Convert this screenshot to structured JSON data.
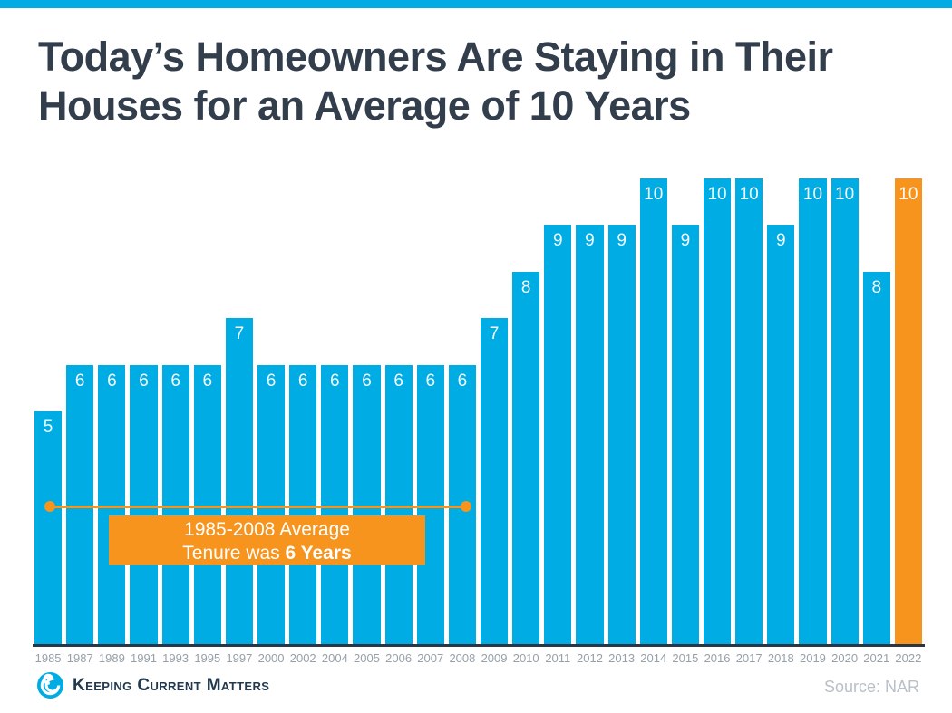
{
  "colors": {
    "cyan": "#00ACE4",
    "orange": "#F7941E",
    "dark": "#333E4C",
    "axis": "#2A3644",
    "xlabel_gray": "#97A0A9",
    "source_gray": "#B9C0C8"
  },
  "title": {
    "line1": "Today’s Homeowners Are Staying in Their",
    "line2": "Houses for an Average of 10 Years"
  },
  "chart_data": {
    "type": "bar",
    "title": "Today’s Homeowners Are Staying in Their Houses for an Average of 10 Years",
    "categories": [
      "1985",
      "1987",
      "1989",
      "1991",
      "1993",
      "1995",
      "1997",
      "2000",
      "2002",
      "2004",
      "2005",
      "2006",
      "2007",
      "2008",
      "2009",
      "2010",
      "2011",
      "2012",
      "2013",
      "2014",
      "2015",
      "2016",
      "2017",
      "2018",
      "2019",
      "2020",
      "2021",
      "2022"
    ],
    "values": [
      5,
      6,
      6,
      6,
      6,
      6,
      7,
      6,
      6,
      6,
      6,
      6,
      6,
      6,
      7,
      8,
      9,
      9,
      9,
      10,
      9,
      10,
      10,
      9,
      10,
      10,
      8,
      10
    ],
    "value_labels_shown": true,
    "bar_color": "#00ACE4",
    "highlight_index": 27,
    "highlight_color": "#F7941E",
    "xlabel": "",
    "ylabel": "",
    "ylim": [
      0,
      10
    ],
    "grid": false,
    "legend": "none",
    "annotation": {
      "span_start_year": "1985",
      "span_end_year": "2008",
      "label_line1": "1985-2008 Average",
      "label_line2_prefix": "Tenure was",
      "label_line2_bold": "6 Years"
    }
  },
  "footer": {
    "logo_text": "Keeping Current Matters",
    "source": "Source: NAR"
  }
}
